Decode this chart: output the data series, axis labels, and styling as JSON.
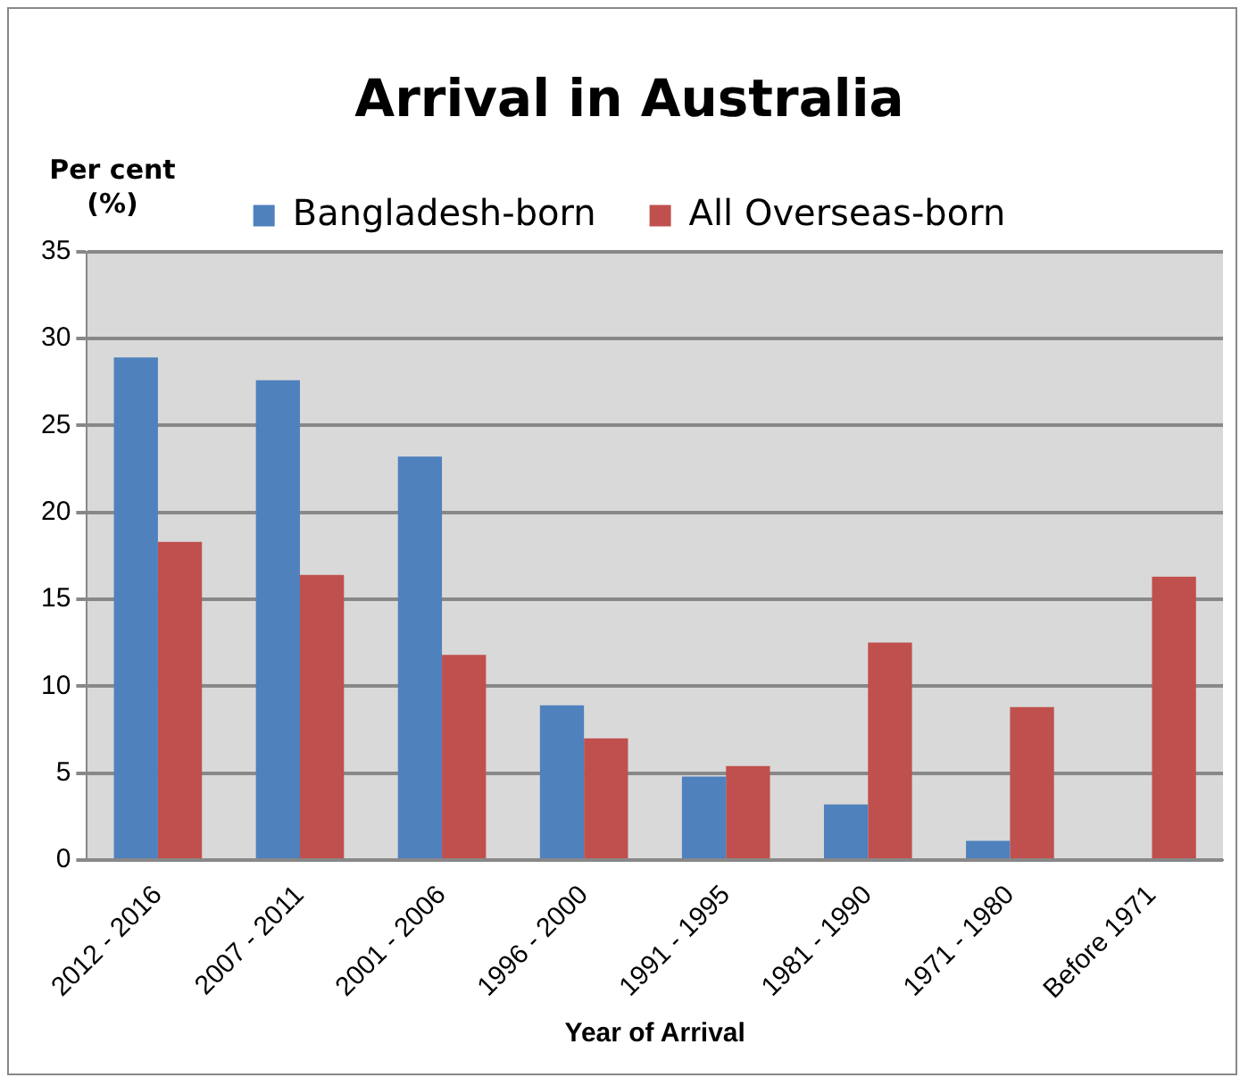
{
  "chart_data": {
    "type": "bar",
    "title": "Arrival in Australia",
    "ylabel": "Per cent (%)",
    "xlabel": "Year of Arrival",
    "categories": [
      "2012 - 2016",
      "2007 - 2011",
      "2001 - 2006",
      "1996 - 2000",
      "1991 - 1995",
      "1981 - 1990",
      "1971 - 1980",
      "Before 1971"
    ],
    "series": [
      {
        "name": "Bangladesh-born",
        "color": "#4f81bd",
        "values": [
          28.9,
          27.6,
          23.2,
          8.9,
          4.8,
          3.2,
          1.1,
          0.1
        ]
      },
      {
        "name": "All Overseas-born",
        "color": "#c0504d",
        "values": [
          18.3,
          16.4,
          11.8,
          7.0,
          5.4,
          12.5,
          8.8,
          16.3
        ]
      }
    ],
    "ylim": [
      0,
      35
    ],
    "yticks": [
      0,
      5,
      10,
      15,
      20,
      25,
      30,
      35
    ],
    "grid": "y",
    "legend": "top"
  }
}
